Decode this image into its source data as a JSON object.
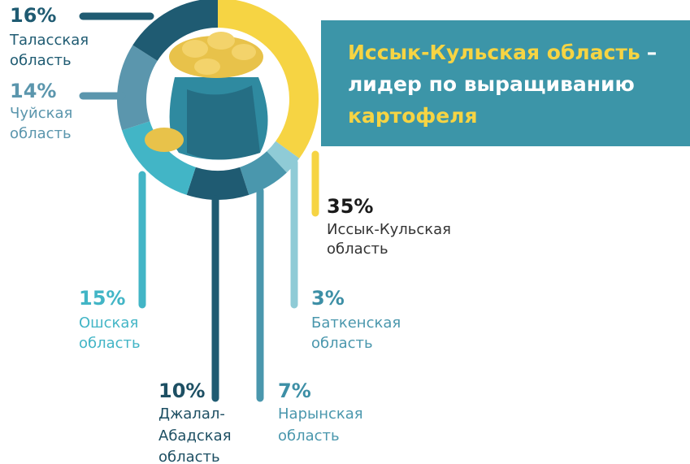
{
  "chart_data": {
    "type": "pie",
    "title": [
      "Иссык-Кульская область",
      "–",
      "лидер по выращиванию",
      "картофеля"
    ],
    "categories": [
      [
        "Иссык-Кульская",
        "область"
      ],
      [
        "Баткенская",
        "область"
      ],
      [
        "Нарынская",
        "область"
      ],
      [
        "Джалал-",
        "Абадская",
        "область"
      ],
      [
        "Ошская",
        "область"
      ],
      [
        "Чуйская",
        "область"
      ],
      [
        "Таласская",
        "область"
      ]
    ],
    "values": [
      35,
      3,
      7,
      10,
      15,
      14,
      16
    ],
    "value_labels": [
      "35%",
      "3%",
      "7%",
      "10%",
      "15%",
      "14%",
      "16%"
    ],
    "colors": [
      "#f6d443",
      "#8fcbd6",
      "#4a97ad",
      "#1f5b72",
      "#42b5c6",
      "#5b96ad",
      "#1f5b72"
    ]
  }
}
